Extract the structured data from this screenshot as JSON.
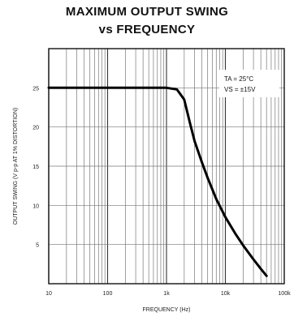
{
  "chart_data": {
    "type": "line",
    "title": "MAXIMUM OUTPUT SWING",
    "subtitle": "vs FREQUENCY",
    "xlabel": "FREQUENCY (Hz)",
    "ylabel": "OUTPUT SWING (V p-p AT 1% DISTORTION)",
    "x_scale": "log",
    "xlim": [
      10,
      100000
    ],
    "ylim": [
      0,
      30
    ],
    "x_tick_labels": [
      "10",
      "100",
      "1k",
      "10k",
      "100k"
    ],
    "y_tick_labels": [
      "5",
      "10",
      "15",
      "20",
      "25"
    ],
    "y_ticks": [
      5,
      10,
      15,
      20,
      25
    ],
    "grid": true,
    "conditions": [
      "TA = 25°C",
      "VS = ±15V"
    ],
    "series": [
      {
        "x": [
          10,
          100,
          1000,
          1500,
          2000,
          2500,
          3000,
          4000,
          5000,
          7000,
          10000,
          15000,
          20000,
          30000,
          40000,
          50000
        ],
        "y": [
          25,
          25,
          25,
          24.8,
          23.5,
          20.5,
          18.2,
          15.5,
          13.5,
          10.8,
          8.5,
          6.3,
          4.9,
          3.1,
          1.9,
          1.0
        ]
      }
    ]
  }
}
